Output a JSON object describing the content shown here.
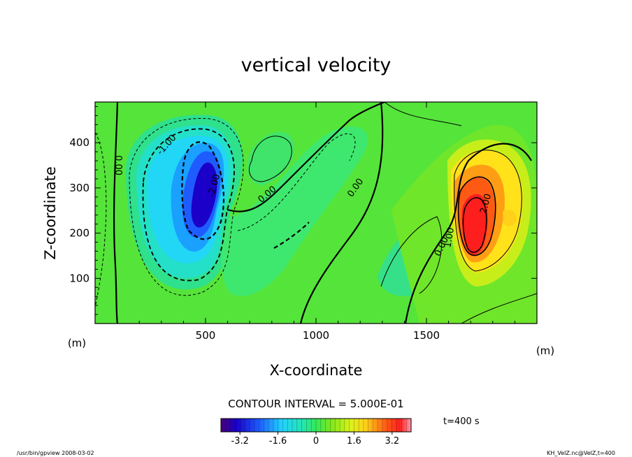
{
  "chart_data": {
    "type": "heatmap",
    "title": "vertical velocity",
    "xlabel": "X-coordinate",
    "ylabel": "Z-coordinate",
    "x_unit": "(m)",
    "y_unit": "(m)",
    "xlim": [
      0,
      2000
    ],
    "ylim": [
      0,
      490
    ],
    "x_ticks": [
      500,
      1000,
      1500
    ],
    "y_ticks": [
      100,
      200,
      300,
      400
    ],
    "contour_interval_text": "CONTOUR INTERVAL = 5.000E-01",
    "contour_labels": [
      {
        "text": "-1.00",
        "x": 325,
        "y": 395,
        "rot": -48
      },
      {
        "text": "0.00",
        "x": 103,
        "y": 350,
        "rot": 90
      },
      {
        "text": "-2.00",
        "x": 540,
        "y": 305,
        "rot": -75
      },
      {
        "text": "0.00",
        "x": 780,
        "y": 285,
        "rot": -40
      },
      {
        "text": "0.00",
        "x": 1180,
        "y": 300,
        "rot": -55
      },
      {
        "text": "0.00",
        "x": 1570,
        "y": 170,
        "rot": -65
      },
      {
        "text": "1.00",
        "x": 1605,
        "y": 190,
        "rot": -80
      },
      {
        "text": "2.00",
        "x": 1770,
        "y": 265,
        "rot": -75
      }
    ],
    "colorbar": {
      "range": [
        -4,
        4
      ],
      "tick_labels": [
        "-3.2",
        "-1.6",
        "0",
        "1.6",
        "3.2"
      ],
      "tick_values": [
        -3.2,
        -1.6,
        0,
        1.6,
        3.2
      ]
    },
    "time_label": "t=400 s",
    "footer_left": "/usr/bin/gpview  2008-03-02",
    "footer_right": "KH_VelZ.nc@VelZ,t=400"
  }
}
